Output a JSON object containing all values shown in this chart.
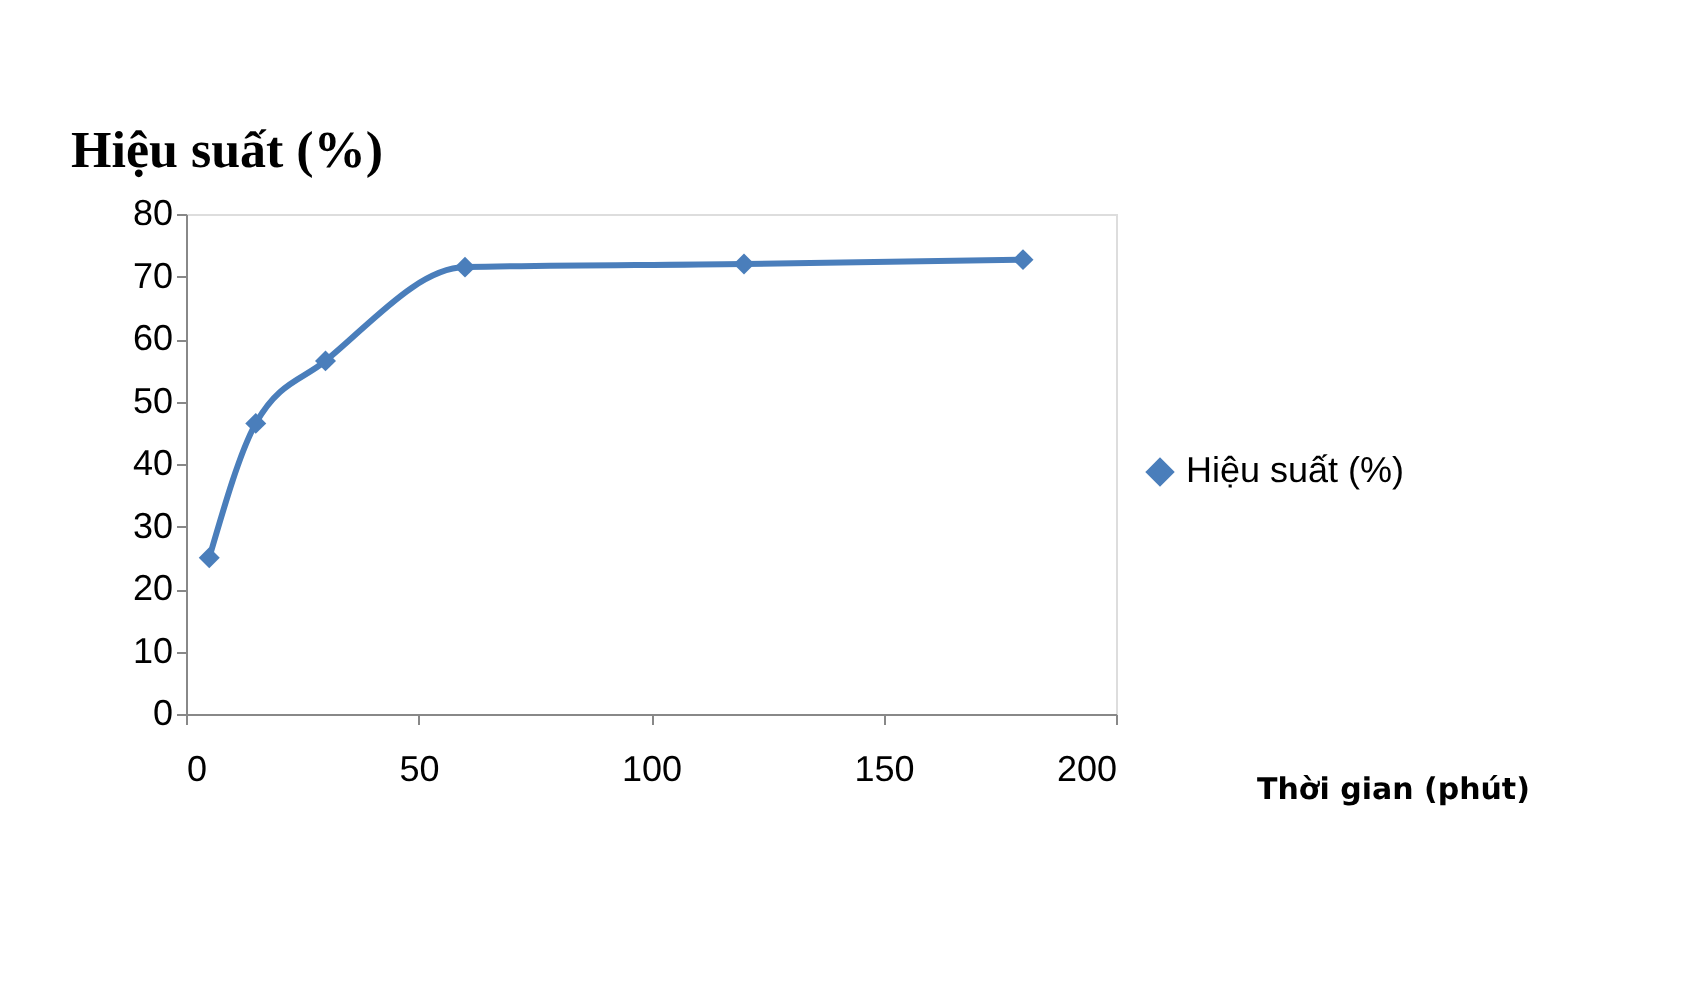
{
  "chart_data": {
    "type": "line",
    "ylabel": "Hiệu suất (%)",
    "xlabel": "Thời gian (phút)",
    "x": [
      5,
      15,
      30,
      60,
      120,
      180
    ],
    "series": [
      {
        "name": "Hiệu suất (%)",
        "color": "#4a7ebb",
        "values": [
          25,
          46.5,
          56.5,
          71.5,
          72,
          72.7
        ]
      }
    ],
    "xlim": [
      0,
      200
    ],
    "xticks": [
      0,
      50,
      100,
      150,
      200
    ],
    "ylim": [
      0,
      80
    ],
    "yticks": [
      0,
      10,
      20,
      30,
      40,
      50,
      60,
      70,
      80
    ],
    "marker": "diamond",
    "line_style": "solid",
    "grid": false,
    "legend": "right"
  }
}
